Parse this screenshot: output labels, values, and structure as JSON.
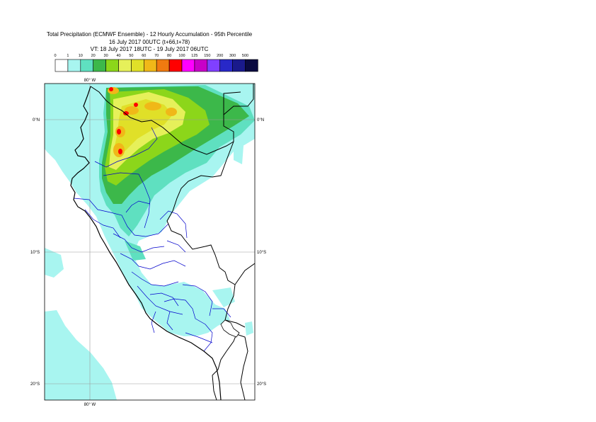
{
  "title": {
    "line1": "Total Precipitation (ECMWF Ensemble) - 12 Hourly Accumulation - 95th Percentile",
    "line2": "16 July 2017 00UTC (t+66,t+78)",
    "line3": "VT: 18 July 2017 18UTC - 19 July 2017 06UTC"
  },
  "legend": {
    "labels": [
      "0",
      "1",
      "10",
      "20",
      "30",
      "40",
      "50",
      "60",
      "70",
      "80",
      "100",
      "125",
      "150",
      "200",
      "300",
      "500"
    ],
    "colors": [
      "#ffffff",
      "#a8f5f0",
      "#5fe0c0",
      "#3cb84a",
      "#8cd61a",
      "#e6f05a",
      "#e0e028",
      "#f0b818",
      "#f07a10",
      "#ff0000",
      "#ff00ff",
      "#c800c8",
      "#8040ff",
      "#2828c8",
      "#1a1a8c",
      "#0a0a40"
    ]
  },
  "map": {
    "lon_labels": {
      "top": "80° W",
      "bottom": "80° W"
    },
    "lat_labels": [
      {
        "left": "0°N",
        "right": "0°N"
      },
      {
        "left": "10°S",
        "right": "10°S"
      },
      {
        "left": "20°S",
        "right": "20°S"
      }
    ],
    "colors": {
      "cyan": "#a8f5f0",
      "teal": "#5fe0c0",
      "green": "#3cb84a",
      "lime": "#8cd61a",
      "yellow": "#e6f05a",
      "gold": "#e0e028",
      "orange": "#f0b818",
      "red": "#ff0000",
      "border_country": "#000000",
      "border_region": "#0000cc",
      "coast": "#000000"
    }
  }
}
